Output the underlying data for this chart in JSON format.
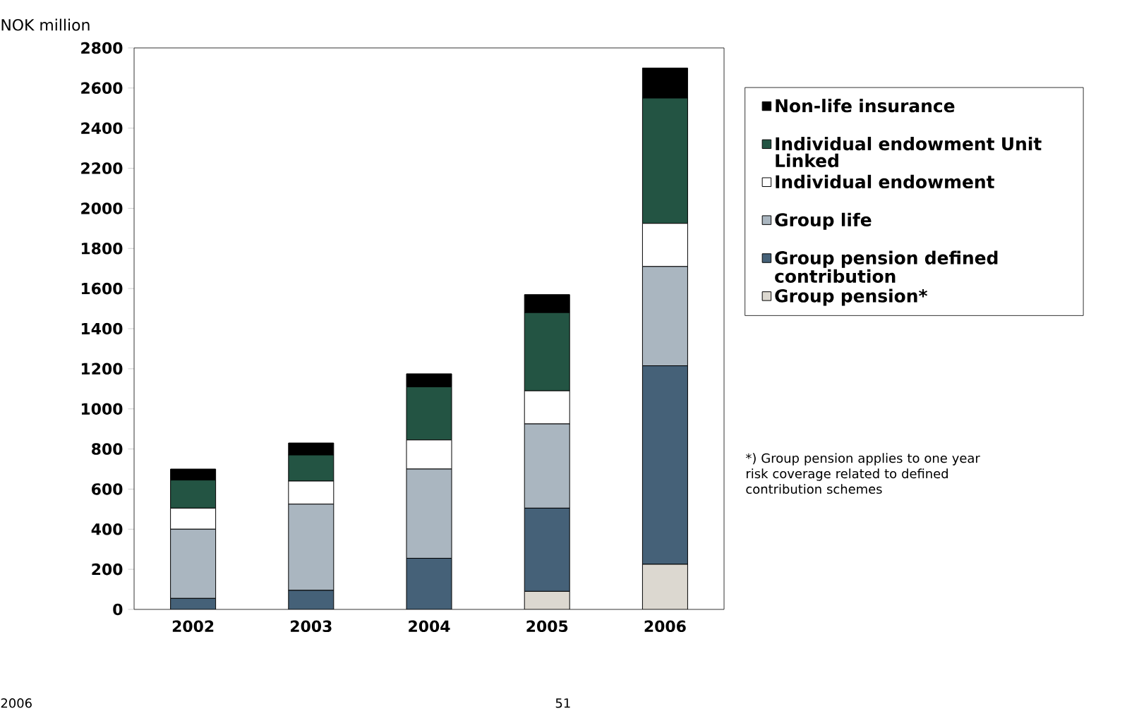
{
  "chart_data": {
    "type": "bar",
    "stacked": true,
    "ylabel": "NOK million",
    "categories": [
      "2002",
      "2003",
      "2004",
      "2005",
      "2006"
    ],
    "series": [
      {
        "name": "Group pension*",
        "color": "#dcd8d0",
        "values": [
          0,
          0,
          0,
          90,
          225
        ]
      },
      {
        "name": "Group pension defined contribution",
        "color": "#456178",
        "values": [
          55,
          95,
          255,
          415,
          990
        ]
      },
      {
        "name": "Group life",
        "color": "#aab6c0",
        "values": [
          345,
          430,
          445,
          420,
          495
        ]
      },
      {
        "name": "Individual endowment",
        "color": "#ffffff",
        "values": [
          105,
          115,
          145,
          165,
          215
        ]
      },
      {
        "name": "Individual endowment Unit Linked",
        "color": "#235443",
        "values": [
          140,
          130,
          265,
          390,
          625
        ]
      },
      {
        "name": "Non-life insurance",
        "color": "#000000",
        "values": [
          55,
          60,
          65,
          90,
          150
        ]
      }
    ],
    "ylim": [
      0,
      2800
    ],
    "yticks": [
      0,
      200,
      400,
      600,
      800,
      1000,
      1200,
      1400,
      1600,
      1800,
      2000,
      2200,
      2400,
      2600,
      2800
    ],
    "grid": false,
    "legend": "right",
    "annotations": [
      "*) Group pension applies to one year risk coverage related to defined contribution schemes",
      "2006",
      "51"
    ]
  }
}
